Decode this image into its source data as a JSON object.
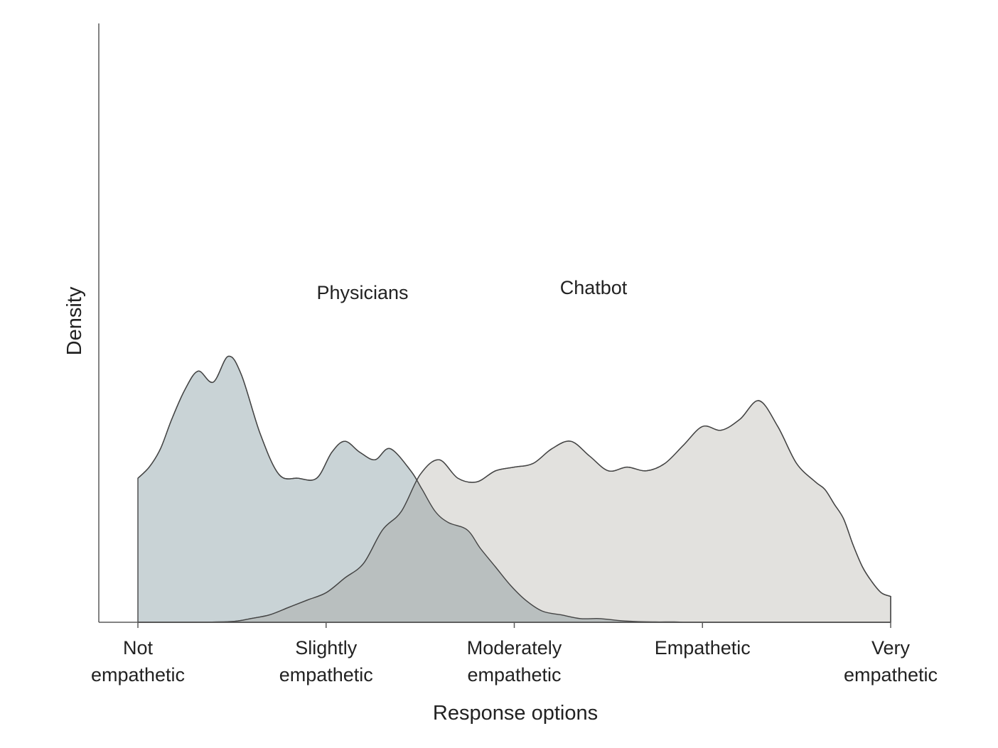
{
  "chart_data": {
    "type": "area",
    "title": "",
    "xlabel": "Response options",
    "ylabel": "Density",
    "x_domain": [
      1,
      5
    ],
    "y_domain": [
      0,
      1
    ],
    "categories": [
      [
        "Not",
        "empathetic"
      ],
      [
        "Slightly",
        "empathetic"
      ],
      [
        "Moderately",
        "empathetic"
      ],
      [
        "Empathetic"
      ],
      [
        "Very",
        "empathetic"
      ]
    ],
    "grid": false,
    "legend": "inline labels",
    "colors": {
      "physicians": "#c9d3d6",
      "chatbot": "#e2e1de",
      "overlap": "#b9bfbf"
    },
    "series": [
      {
        "name": "Physicians",
        "color": "#c9d3d6",
        "x": [
          1.0,
          1.06,
          1.12,
          1.18,
          1.25,
          1.32,
          1.4,
          1.48,
          1.55,
          1.65,
          1.75,
          1.85,
          1.95,
          2.03,
          2.1,
          2.18,
          2.26,
          2.34,
          2.45,
          2.51,
          2.58,
          2.65,
          2.75,
          2.82,
          2.9,
          2.98,
          3.06,
          3.15,
          3.25,
          3.35,
          3.45,
          3.55,
          3.65,
          3.75,
          3.85,
          3.92,
          4.0,
          4.08,
          4.16,
          4.25,
          4.35,
          4.45,
          4.55,
          4.65,
          4.75,
          4.85,
          4.92,
          5.0
        ],
        "y": [
          0.39,
          0.42,
          0.47,
          0.55,
          0.63,
          0.68,
          0.65,
          0.72,
          0.67,
          0.51,
          0.4,
          0.39,
          0.39,
          0.46,
          0.49,
          0.46,
          0.44,
          0.47,
          0.41,
          0.36,
          0.3,
          0.27,
          0.25,
          0.2,
          0.15,
          0.1,
          0.06,
          0.03,
          0.02,
          0.01,
          0.01,
          0.005,
          0.002,
          0.001,
          0.001,
          0.0,
          0.0,
          0.0,
          0.0,
          0.0,
          0.0,
          0.0,
          0.0,
          0.0,
          0.0,
          0.0,
          0.0,
          0.0
        ]
      },
      {
        "name": "Chatbot",
        "color": "#e2e1de",
        "x": [
          1.0,
          1.3,
          1.5,
          1.6,
          1.7,
          1.8,
          1.9,
          2.0,
          2.1,
          2.2,
          2.3,
          2.4,
          2.5,
          2.6,
          2.7,
          2.8,
          2.9,
          3.0,
          3.1,
          3.2,
          3.3,
          3.4,
          3.5,
          3.6,
          3.7,
          3.8,
          3.9,
          4.0,
          4.1,
          4.2,
          4.3,
          4.4,
          4.5,
          4.6,
          4.65,
          4.7,
          4.75,
          4.8,
          4.85,
          4.9,
          4.95,
          5.0
        ],
        "y": [
          0.0,
          0.0,
          0.002,
          0.01,
          0.02,
          0.04,
          0.06,
          0.08,
          0.12,
          0.16,
          0.25,
          0.3,
          0.4,
          0.44,
          0.39,
          0.38,
          0.41,
          0.42,
          0.43,
          0.47,
          0.49,
          0.45,
          0.41,
          0.42,
          0.41,
          0.43,
          0.48,
          0.53,
          0.52,
          0.55,
          0.6,
          0.53,
          0.43,
          0.38,
          0.36,
          0.32,
          0.28,
          0.21,
          0.15,
          0.11,
          0.08,
          0.07
        ]
      }
    ]
  }
}
